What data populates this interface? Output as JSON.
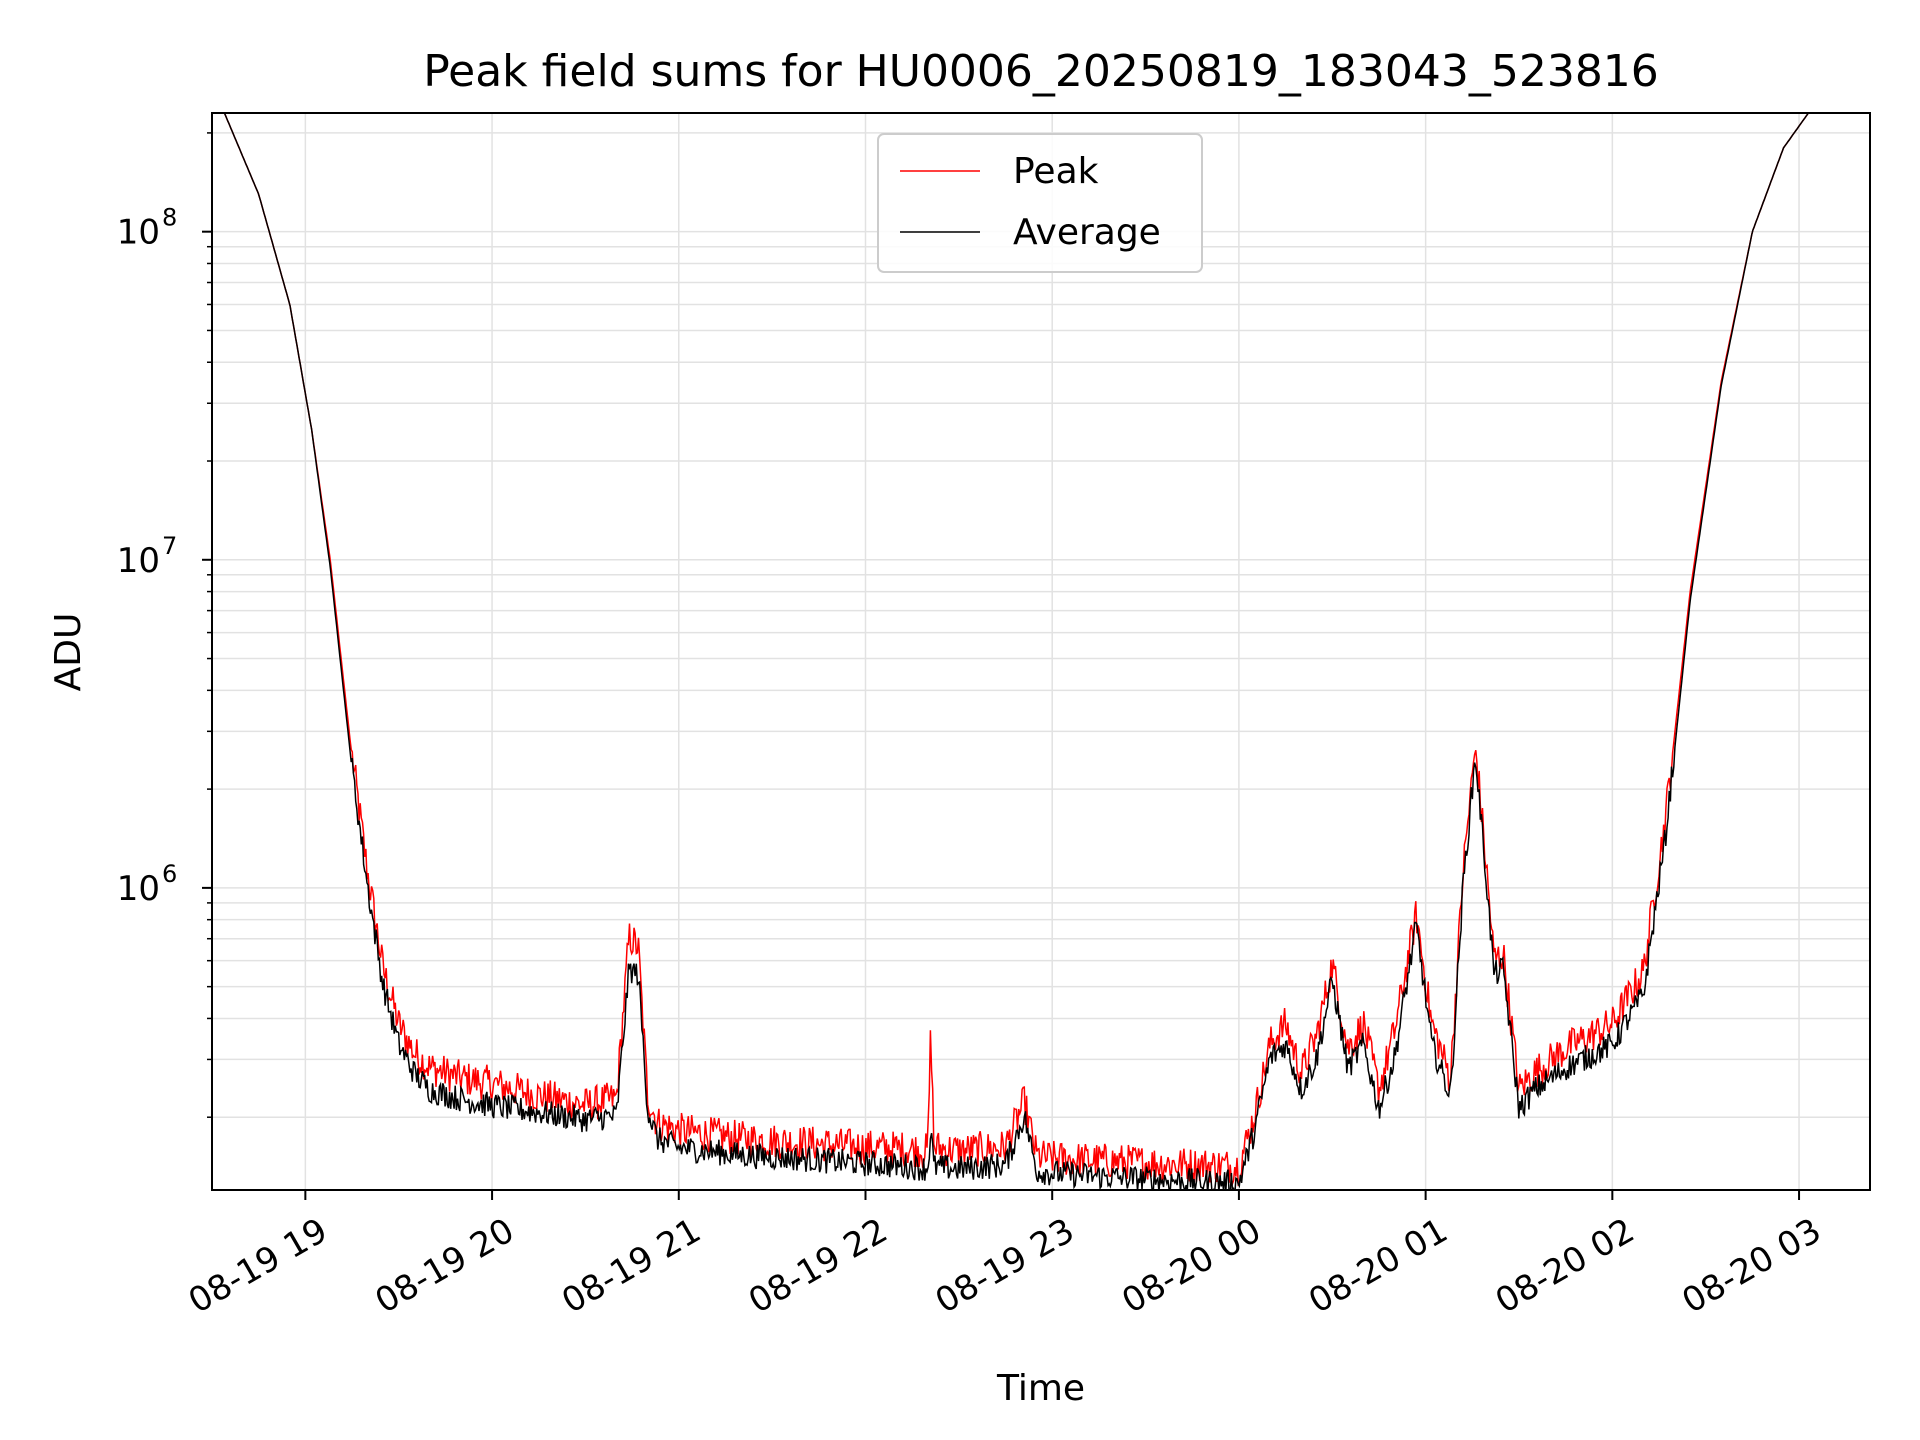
{
  "chart_data": {
    "type": "line",
    "title": "Peak field sums for HU0006_20250819_183043_523816",
    "xlabel": "Time",
    "ylabel": "ADU",
    "yscale": "log",
    "ylim": [
      120000,
      230000000
    ],
    "xlim_hours_from_0819_1830": [
      0.0,
      8.88
    ],
    "grid": true,
    "legend": {
      "placement": "upper center",
      "entries": [
        "Peak",
        "Average"
      ]
    },
    "x_ticks": [
      "08-19 19",
      "08-19 20",
      "08-19 21",
      "08-19 22",
      "08-19 23",
      "08-20 00",
      "08-20 01",
      "08-20 02",
      "08-20 03"
    ],
    "y_ticks": [
      {
        "exp": "6",
        "value": 1000000
      },
      {
        "exp": "7",
        "value": 10000000
      },
      {
        "exp": "8",
        "value": 100000000
      }
    ],
    "series": [
      {
        "name": "Peak",
        "color": "#ff0000",
        "time": [
          "08-19 18:34",
          "08-19 18:45",
          "08-19 18:55",
          "08-19 19:02",
          "08-19 19:08",
          "08-19 19:15",
          "08-19 19:20",
          "08-19 19:25",
          "08-19 19:30",
          "08-19 19:35",
          "08-19 19:40",
          "08-19 19:50",
          "08-19 20:00",
          "08-19 20:15",
          "08-19 20:30",
          "08-19 20:40",
          "08-19 20:44",
          "08-19 20:47",
          "08-19 20:50",
          "08-19 20:53",
          "08-19 21:00",
          "08-19 21:20",
          "08-19 21:40",
          "08-19 22:00",
          "08-19 22:15",
          "08-19 22:20",
          "08-19 22:21",
          "08-19 22:22",
          "08-19 22:30",
          "08-19 22:45",
          "08-19 22:51",
          "08-19 22:55",
          "08-19 23:00",
          "08-19 23:20",
          "08-19 23:40",
          "08-20 00:00",
          "08-20 00:05",
          "08-20 00:10",
          "08-20 00:15",
          "08-20 00:20",
          "08-20 00:25",
          "08-20 00:30",
          "08-20 00:35",
          "08-20 00:40",
          "08-20 00:45",
          "08-20 00:50",
          "08-20 00:57",
          "08-20 01:02",
          "08-20 01:08",
          "08-20 01:12",
          "08-20 01:16",
          "08-20 01:19",
          "08-20 01:22",
          "08-20 01:25",
          "08-20 01:30",
          "08-20 01:35",
          "08-20 01:45",
          "08-20 02:00",
          "08-20 02:10",
          "08-20 02:17",
          "08-20 02:25",
          "08-20 02:35",
          "08-20 02:45",
          "08-20 02:55",
          "08-20 03:03"
        ],
        "values": [
          230000000,
          130000000,
          60000000,
          25000000,
          10000000,
          2500000,
          1100000,
          560000,
          380000,
          310000,
          280000,
          260000,
          250000,
          230000,
          215000,
          225000,
          700000,
          650000,
          230000,
          190000,
          180000,
          170000,
          165000,
          160000,
          158000,
          156000,
          370000,
          160000,
          156000,
          160000,
          220000,
          150000,
          148000,
          145000,
          142000,
          140000,
          200000,
          330000,
          380000,
          270000,
          350000,
          580000,
          320000,
          380000,
          240000,
          360000,
          820000,
          380000,
          260000,
          1100000,
          2700000,
          1300000,
          600000,
          620000,
          240000,
          270000,
          320000,
          380000,
          550000,
          1600000,
          8000000,
          35000000,
          100000000,
          180000000,
          230000000
        ]
      },
      {
        "name": "Average",
        "color": "#000000",
        "time": [
          "08-19 18:34",
          "08-19 18:45",
          "08-19 18:55",
          "08-19 19:02",
          "08-19 19:08",
          "08-19 19:15",
          "08-19 19:20",
          "08-19 19:25",
          "08-19 19:30",
          "08-19 19:35",
          "08-19 19:40",
          "08-19 19:50",
          "08-19 20:00",
          "08-19 20:15",
          "08-19 20:30",
          "08-19 20:40",
          "08-19 20:44",
          "08-19 20:47",
          "08-19 20:50",
          "08-19 20:53",
          "08-19 21:00",
          "08-19 21:20",
          "08-19 21:40",
          "08-19 22:00",
          "08-19 22:15",
          "08-19 22:20",
          "08-19 22:21",
          "08-19 22:22",
          "08-19 22:30",
          "08-19 22:45",
          "08-19 22:51",
          "08-19 22:55",
          "08-19 23:00",
          "08-19 23:20",
          "08-19 23:40",
          "08-20 00:00",
          "08-20 00:05",
          "08-20 00:10",
          "08-20 00:15",
          "08-20 00:20",
          "08-20 00:25",
          "08-20 00:30",
          "08-20 00:35",
          "08-20 00:40",
          "08-20 00:45",
          "08-20 00:50",
          "08-20 00:57",
          "08-20 01:02",
          "08-20 01:08",
          "08-20 01:12",
          "08-20 01:16",
          "08-20 01:19",
          "08-20 01:22",
          "08-20 01:25",
          "08-20 01:30",
          "08-20 01:35",
          "08-20 01:45",
          "08-20 02:00",
          "08-20 02:10",
          "08-20 02:17",
          "08-20 02:25",
          "08-20 02:35",
          "08-20 02:45",
          "08-20 02:55",
          "08-20 03:03"
        ],
        "values": [
          230000000,
          130000000,
          60000000,
          25000000,
          9500000,
          2300000,
          1000000,
          500000,
          330000,
          270000,
          240000,
          225000,
          215000,
          205000,
          195000,
          200000,
          560000,
          540000,
          210000,
          170000,
          160000,
          152000,
          148000,
          143000,
          140000,
          138000,
          180000,
          140000,
          138000,
          142000,
          200000,
          136000,
          134000,
          130000,
          127000,
          125000,
          180000,
          300000,
          330000,
          240000,
          300000,
          520000,
          280000,
          330000,
          210000,
          300000,
          760000,
          330000,
          230000,
          1000000,
          2500000,
          1200000,
          540000,
          560000,
          210000,
          240000,
          280000,
          330000,
          470000,
          1400000,
          7500000,
          34000000,
          100000000,
          180000000,
          230000000
        ]
      }
    ]
  }
}
